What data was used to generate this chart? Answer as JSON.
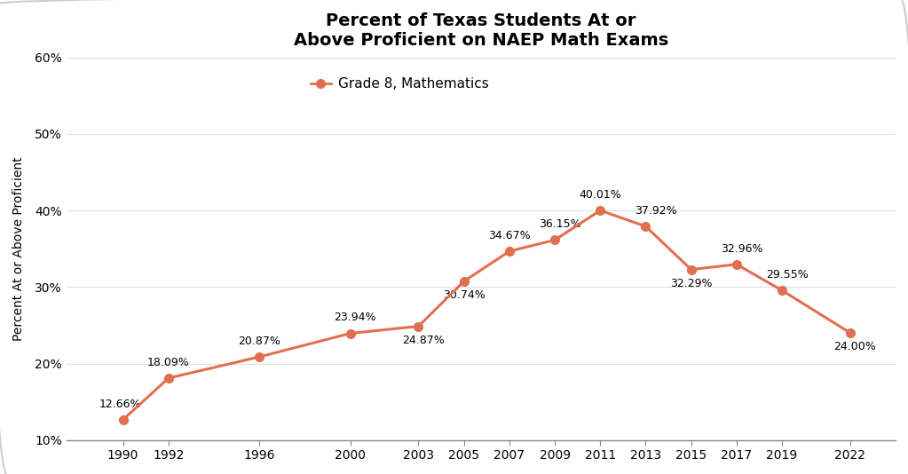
{
  "title": "Percent of Texas Students At or\nAbove Proficient on NAEP Math Exams",
  "ylabel": "Percent At or Above Proficient",
  "legend_label": "Grade 8, Mathematics",
  "line_color": "#E07050",
  "years": [
    1990,
    1992,
    1996,
    2000,
    2003,
    2005,
    2007,
    2009,
    2011,
    2013,
    2015,
    2017,
    2019,
    2022
  ],
  "values": [
    12.66,
    18.09,
    20.87,
    23.94,
    24.87,
    30.74,
    34.67,
    36.15,
    40.01,
    37.92,
    32.29,
    32.96,
    29.55,
    24.0
  ],
  "labels": [
    "12.66%",
    "18.09%",
    "20.87%",
    "23.94%",
    "24.87%",
    "30.74%",
    "34.67%",
    "36.15%",
    "40.01%",
    "37.92%",
    "32.29%",
    "32.96%",
    "29.55%",
    "24.00%"
  ],
  "ylim": [
    10,
    60
  ],
  "yticks": [
    10,
    20,
    30,
    40,
    50,
    60
  ],
  "ytick_labels": [
    "10%",
    "20%",
    "30%",
    "40%",
    "50%",
    "60%"
  ],
  "background_color": "#FFFFFF",
  "label_offsets_points": [
    [
      -2,
      8
    ],
    [
      0,
      8
    ],
    [
      0,
      8
    ],
    [
      4,
      8
    ],
    [
      4,
      -16
    ],
    [
      0,
      -16
    ],
    [
      0,
      8
    ],
    [
      4,
      8
    ],
    [
      0,
      8
    ],
    [
      8,
      8
    ],
    [
      0,
      -16
    ],
    [
      4,
      8
    ],
    [
      4,
      8
    ],
    [
      4,
      -16
    ]
  ]
}
